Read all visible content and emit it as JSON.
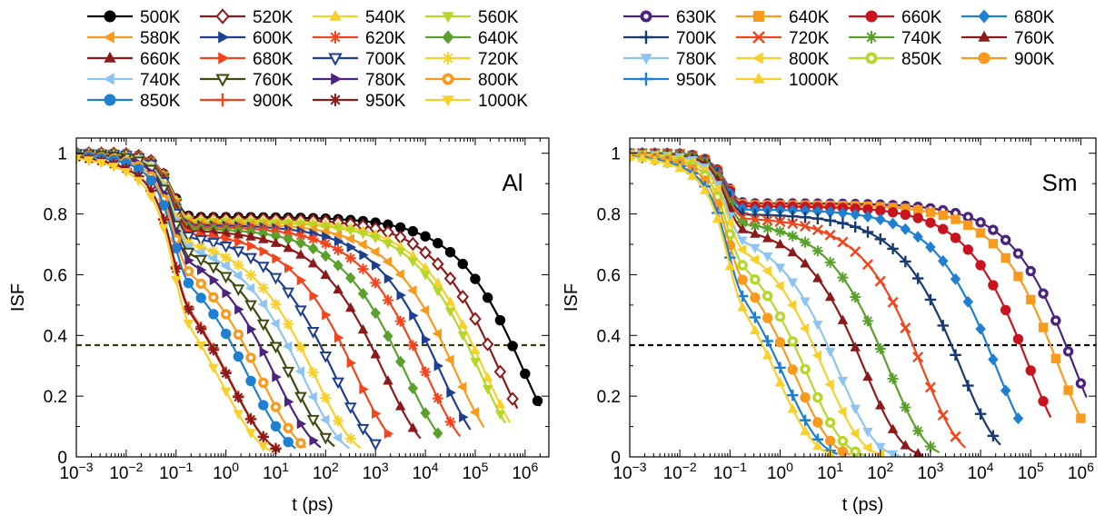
{
  "chart_data": [
    {
      "type": "line",
      "panel_label": "Al",
      "xlabel": "t (ps)",
      "ylabel": "ISF",
      "xscale": "log",
      "xlim": [
        0.001,
        3000000
      ],
      "ylim": [
        0,
        1.05
      ],
      "x_tick_values": [
        0.001,
        0.01,
        0.1,
        1,
        10,
        100,
        1000,
        10000,
        100000,
        1000000
      ],
      "x_tick_labels": [
        {
          "base": "10",
          "exp": "−3"
        },
        {
          "base": "10",
          "exp": "−2"
        },
        {
          "base": "10",
          "exp": "−1"
        },
        {
          "base": "10",
          "exp": "0"
        },
        {
          "base": "10",
          "exp": "1"
        },
        {
          "base": "10",
          "exp": "2"
        },
        {
          "base": "10",
          "exp": "3"
        },
        {
          "base": "10",
          "exp": "4"
        },
        {
          "base": "10",
          "exp": "5"
        },
        {
          "base": "10",
          "exp": "6"
        }
      ],
      "y_tick_values": [
        0,
        0.2,
        0.4,
        0.6,
        0.8,
        1
      ],
      "y_tick_labels": [
        "0",
        "0.2",
        "0.4",
        "0.6",
        "0.8",
        "1"
      ],
      "reference_line": {
        "y": 0.368,
        "style": "dashed",
        "color": "#3a3a0a"
      },
      "legend_columns": 4,
      "series": [
        {
          "name": "500K",
          "color": "#000000",
          "marker": "circle",
          "plateau": 0.79,
          "tau": 900000,
          "beta": 0.55,
          "tmax": 2000000
        },
        {
          "name": "520K",
          "color": "#8b1a1a",
          "marker": "diamond-open",
          "plateau": 0.785,
          "tau": 300000,
          "beta": 0.55,
          "tmax": 700000
        },
        {
          "name": "540K",
          "color": "#f7d02c",
          "marker": "triangle-up",
          "plateau": 0.78,
          "tau": 150000,
          "beta": 0.55,
          "tmax": 500000
        },
        {
          "name": "560K",
          "color": "#b7d62a",
          "marker": "triangle-down",
          "plateau": 0.775,
          "tau": 120000,
          "beta": 0.55,
          "tmax": 400000
        },
        {
          "name": "580K",
          "color": "#f79a1e",
          "marker": "triangle-left",
          "plateau": 0.77,
          "tau": 40000,
          "beta": 0.55,
          "tmax": 150000
        },
        {
          "name": "600K",
          "color": "#1d3f8f",
          "marker": "triangle-right",
          "plateau": 0.765,
          "tau": 20000,
          "beta": 0.55,
          "tmax": 80000
        },
        {
          "name": "620K",
          "color": "#f2441d",
          "marker": "asterisk",
          "plateau": 0.76,
          "tau": 10000,
          "beta": 0.55,
          "tmax": 50000
        },
        {
          "name": "640K",
          "color": "#5aa02c",
          "marker": "diamond",
          "plateau": 0.755,
          "tau": 4000,
          "beta": 0.55,
          "tmax": 20000
        },
        {
          "name": "660K",
          "color": "#8b1a1a",
          "marker": "triangle-up",
          "plateau": 0.75,
          "tau": 1500,
          "beta": 0.55,
          "tmax": 8000
        },
        {
          "name": "680K",
          "color": "#f2441d",
          "marker": "triangle-right",
          "plateau": 0.745,
          "tau": 400,
          "beta": 0.55,
          "tmax": 2000
        },
        {
          "name": "700K",
          "color": "#1d3f8f",
          "marker": "triangle-down-open",
          "plateau": 0.74,
          "tau": 150,
          "beta": 0.55,
          "tmax": 1000
        },
        {
          "name": "720K",
          "color": "#f7d02c",
          "marker": "asterisk",
          "plateau": 0.73,
          "tau": 60,
          "beta": 0.55,
          "tmax": 500
        },
        {
          "name": "740K",
          "color": "#8ec5f0",
          "marker": "triangle-left",
          "plateau": 0.725,
          "tau": 35,
          "beta": 0.55,
          "tmax": 300
        },
        {
          "name": "760K",
          "color": "#3f4a10",
          "marker": "triangle-down-open",
          "plateau": 0.72,
          "tau": 20,
          "beta": 0.55,
          "tmax": 150
        },
        {
          "name": "780K",
          "color": "#4b2480",
          "marker": "triangle-right",
          "plateau": 0.715,
          "tau": 10,
          "beta": 0.55,
          "tmax": 80
        },
        {
          "name": "800K",
          "color": "#f79a1e",
          "marker": "circle-dot",
          "plateau": 0.71,
          "tau": 5,
          "beta": 0.55,
          "tmax": 40
        },
        {
          "name": "850K",
          "color": "#1f7fd0",
          "marker": "circle",
          "plateau": 0.7,
          "tau": 3,
          "beta": 0.55,
          "tmax": 25
        },
        {
          "name": "900K",
          "color": "#f2441d",
          "marker": "plus",
          "plateau": 0.69,
          "tau": 1.2,
          "beta": 0.55,
          "tmax": 12
        },
        {
          "name": "950K",
          "color": "#8b1a1a",
          "marker": "asterisk",
          "plateau": 0.68,
          "tau": 1.2,
          "beta": 0.55,
          "tmax": 12
        },
        {
          "name": "1000K",
          "color": "#f7d02c",
          "marker": "triangle-down",
          "plateau": 0.67,
          "tau": 0.8,
          "beta": 0.55,
          "tmax": 8
        }
      ]
    },
    {
      "type": "line",
      "panel_label": "Sm",
      "xlabel": "t (ps)",
      "ylabel": "ISF",
      "xscale": "log",
      "xlim": [
        0.001,
        2000000
      ],
      "ylim": [
        0,
        1.05
      ],
      "x_tick_values": [
        0.001,
        0.01,
        0.1,
        1,
        10,
        100,
        1000,
        10000,
        100000,
        1000000
      ],
      "x_tick_labels": [
        {
          "base": "10",
          "exp": "−3"
        },
        {
          "base": "10",
          "exp": "−2"
        },
        {
          "base": "10",
          "exp": "−1"
        },
        {
          "base": "10",
          "exp": "0"
        },
        {
          "base": "10",
          "exp": "1"
        },
        {
          "base": "10",
          "exp": "2"
        },
        {
          "base": "10",
          "exp": "3"
        },
        {
          "base": "10",
          "exp": "4"
        },
        {
          "base": "10",
          "exp": "5"
        },
        {
          "base": "10",
          "exp": "6"
        }
      ],
      "y_tick_values": [
        0,
        0.2,
        0.4,
        0.6,
        0.8,
        1
      ],
      "y_tick_labels": [
        "0",
        "0.2",
        "0.4",
        "0.6",
        "0.8",
        "1"
      ],
      "reference_line": {
        "y": 0.368,
        "style": "dashed",
        "color": "#000000"
      },
      "legend_columns": 4,
      "series": [
        {
          "name": "630K",
          "color": "#4b2480",
          "marker": "circle-dot",
          "plateau": 0.835,
          "tau": 700000,
          "beta": 0.6,
          "tmax": 1300000
        },
        {
          "name": "640K",
          "color": "#f79a1e",
          "marker": "square",
          "plateau": 0.83,
          "tau": 350000,
          "beta": 0.6,
          "tmax": 1000000
        },
        {
          "name": "660K",
          "color": "#c8141e",
          "marker": "circle",
          "plateau": 0.825,
          "tau": 90000,
          "beta": 0.6,
          "tmax": 250000
        },
        {
          "name": "680K",
          "color": "#1f7fd0",
          "marker": "diamond",
          "plateau": 0.815,
          "tau": 20000,
          "beta": 0.6,
          "tmax": 60000
        },
        {
          "name": "700K",
          "color": "#173a70",
          "marker": "plus",
          "plateau": 0.8,
          "tau": 4000,
          "beta": 0.6,
          "tmax": 25000
        },
        {
          "name": "720K",
          "color": "#f2441d",
          "marker": "cross",
          "plateau": 0.79,
          "tau": 700,
          "beta": 0.6,
          "tmax": 5000
        },
        {
          "name": "740K",
          "color": "#5aa02c",
          "marker": "asterisk",
          "plateau": 0.78,
          "tau": 150,
          "beta": 0.6,
          "tmax": 1500
        },
        {
          "name": "760K",
          "color": "#8b1a1a",
          "marker": "triangle-up",
          "plateau": 0.77,
          "tau": 50,
          "beta": 0.6,
          "tmax": 700
        },
        {
          "name": "780K",
          "color": "#8ec5f0",
          "marker": "triangle-down",
          "plateau": 0.76,
          "tau": 15,
          "beta": 0.6,
          "tmax": 250
        },
        {
          "name": "800K",
          "color": "#f7d02c",
          "marker": "triangle-left",
          "plateau": 0.75,
          "tau": 8,
          "beta": 0.6,
          "tmax": 100
        },
        {
          "name": "850K",
          "color": "#b7d62a",
          "marker": "circle-dot",
          "plateau": 0.74,
          "tau": 3.5,
          "beta": 0.6,
          "tmax": 50
        },
        {
          "name": "900K",
          "color": "#f79a1e",
          "marker": "circle",
          "plateau": 0.73,
          "tau": 2.0,
          "beta": 0.6,
          "tmax": 25
        },
        {
          "name": "950K",
          "color": "#1f7fd0",
          "marker": "plus",
          "plateau": 0.72,
          "tau": 1.2,
          "beta": 0.6,
          "tmax": 14
        },
        {
          "name": "1000K",
          "color": "#f7d02c",
          "marker": "triangle-up",
          "plateau": 0.71,
          "tau": 0.9,
          "beta": 0.6,
          "tmax": 10
        }
      ]
    }
  ]
}
